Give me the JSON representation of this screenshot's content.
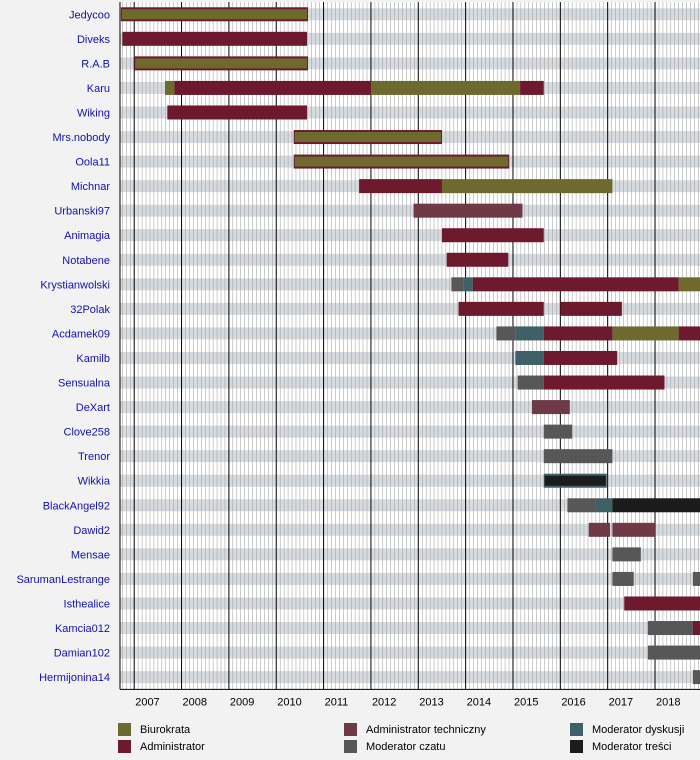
{
  "chart_data": {
    "type": "timeline",
    "title": "",
    "xlabel": "",
    "ylabel": "",
    "xlim": [
      2006.7,
      2018.95
    ],
    "x_ticks": [
      "2007",
      "2008",
      "2009",
      "2010",
      "2011",
      "2012",
      "2013",
      "2014",
      "2015",
      "2016",
      "2017",
      "2018"
    ],
    "legend": [
      {
        "key": "biurokrata",
        "label": "Biurokrata",
        "color": "#6e6a2e"
      },
      {
        "key": "administrator",
        "label": "Administrator",
        "color": "#6e1a2e"
      },
      {
        "key": "admin_tech",
        "label": "Administrator techniczny",
        "color": "#6e3a46"
      },
      {
        "key": "mod_czatu",
        "label": "Moderator czatu",
        "color": "#575757"
      },
      {
        "key": "mod_dyskusji",
        "label": "Moderator dyskusji",
        "color": "#3d6166"
      },
      {
        "key": "mod_tresci",
        "label": "Moderator treści",
        "color": "#1c1c1c"
      }
    ],
    "users": [
      {
        "name": "Jedycoo",
        "bars": [
          {
            "role": "administrator",
            "start": 2006.72,
            "end": 2010.67
          },
          {
            "role": "biurokrata",
            "start": 2006.74,
            "end": 2010.65,
            "thin": true
          }
        ]
      },
      {
        "name": "Diveks",
        "bars": [
          {
            "role": "administrator",
            "start": 2006.75,
            "end": 2010.65
          }
        ]
      },
      {
        "name": "R.A.B",
        "bars": [
          {
            "role": "administrator",
            "start": 2007.0,
            "end": 2010.67
          },
          {
            "role": "biurokrata",
            "start": 2007.02,
            "end": 2010.65,
            "thin": true
          }
        ]
      },
      {
        "name": "Karu",
        "bars": [
          {
            "role": "biurokrata",
            "start": 2007.65,
            "end": 2007.85
          },
          {
            "role": "administrator",
            "start": 2007.85,
            "end": 2012.0
          },
          {
            "role": "biurokrata",
            "start": 2012.0,
            "end": 2015.15
          },
          {
            "role": "administrator",
            "start": 2015.15,
            "end": 2015.65
          }
        ]
      },
      {
        "name": "Wiking",
        "bars": [
          {
            "role": "administrator",
            "start": 2007.7,
            "end": 2010.65
          }
        ]
      },
      {
        "name": "Mrs.nobody",
        "bars": [
          {
            "role": "administrator",
            "start": 2010.37,
            "end": 2013.5
          },
          {
            "role": "biurokrata",
            "start": 2010.39,
            "end": 2013.48,
            "thin": true
          }
        ]
      },
      {
        "name": "Oola11",
        "bars": [
          {
            "role": "administrator",
            "start": 2010.37,
            "end": 2014.92
          },
          {
            "role": "biurokrata",
            "start": 2010.39,
            "end": 2014.9,
            "thin": true
          }
        ]
      },
      {
        "name": "Michnar",
        "bars": [
          {
            "role": "administrator",
            "start": 2011.75,
            "end": 2013.5
          },
          {
            "role": "biurokrata",
            "start": 2013.5,
            "end": 2017.1
          }
        ]
      },
      {
        "name": "Urbanski97",
        "bars": [
          {
            "role": "admin_tech",
            "start": 2012.9,
            "end": 2015.2
          }
        ]
      },
      {
        "name": "Animagia",
        "bars": [
          {
            "role": "administrator",
            "start": 2013.5,
            "end": 2015.65
          }
        ]
      },
      {
        "name": "Notabene",
        "bars": [
          {
            "role": "administrator",
            "start": 2013.6,
            "end": 2014.9
          }
        ]
      },
      {
        "name": "Krystianwolski",
        "bars": [
          {
            "role": "mod_czatu",
            "start": 2013.7,
            "end": 2013.95
          },
          {
            "role": "mod_dyskusji",
            "start": 2013.95,
            "end": 2014.15
          },
          {
            "role": "administrator",
            "start": 2014.15,
            "end": 2018.5
          },
          {
            "role": "biurokrata",
            "start": 2018.5,
            "end": 2018.95
          }
        ]
      },
      {
        "name": "32Polak",
        "bars": [
          {
            "role": "administrator",
            "start": 2013.85,
            "end": 2015.65
          },
          {
            "role": "administrator",
            "start": 2016.0,
            "end": 2017.3
          }
        ]
      },
      {
        "name": "Acdamek09",
        "bars": [
          {
            "role": "mod_czatu",
            "start": 2014.65,
            "end": 2015.05
          },
          {
            "role": "mod_dyskusji",
            "start": 2015.05,
            "end": 2015.65
          },
          {
            "role": "administrator",
            "start": 2015.65,
            "end": 2017.1
          },
          {
            "role": "biurokrata",
            "start": 2017.1,
            "end": 2018.5
          },
          {
            "role": "administrator",
            "start": 2018.5,
            "end": 2018.95
          }
        ]
      },
      {
        "name": "Kamilb",
        "bars": [
          {
            "role": "mod_dyskusji",
            "start": 2015.05,
            "end": 2015.65
          },
          {
            "role": "administrator",
            "start": 2015.65,
            "end": 2017.2
          }
        ]
      },
      {
        "name": "Sensualna",
        "bars": [
          {
            "role": "mod_czatu",
            "start": 2015.1,
            "end": 2015.65
          },
          {
            "role": "administrator",
            "start": 2015.65,
            "end": 2018.2
          }
        ]
      },
      {
        "name": "DeXart",
        "bars": [
          {
            "role": "admin_tech",
            "start": 2015.4,
            "end": 2016.2
          }
        ]
      },
      {
        "name": "Clove258",
        "bars": [
          {
            "role": "mod_czatu",
            "start": 2015.65,
            "end": 2016.25
          }
        ]
      },
      {
        "name": "Trenor",
        "bars": [
          {
            "role": "mod_czatu",
            "start": 2015.65,
            "end": 2017.1
          }
        ]
      },
      {
        "name": "Wikkia",
        "bars": [
          {
            "role": "mod_dyskusji",
            "start": 2015.65,
            "end": 2016.98
          },
          {
            "role": "mod_tresci",
            "start": 2015.67,
            "end": 2016.96,
            "thin": true
          }
        ]
      },
      {
        "name": "BlackAngel92",
        "bars": [
          {
            "role": "mod_czatu",
            "start": 2016.15,
            "end": 2016.75
          },
          {
            "role": "mod_dyskusji",
            "start": 2016.75,
            "end": 2017.1
          },
          {
            "role": "mod_tresci",
            "start": 2017.1,
            "end": 2018.95
          }
        ]
      },
      {
        "name": "Dawid2",
        "bars": [
          {
            "role": "admin_tech",
            "start": 2016.6,
            "end": 2017.05
          },
          {
            "role": "admin_tech",
            "start": 2017.1,
            "end": 2018.0
          }
        ]
      },
      {
        "name": "Mensae",
        "bars": [
          {
            "role": "mod_czatu",
            "start": 2017.1,
            "end": 2017.7
          }
        ]
      },
      {
        "name": "SarumanLestrange",
        "bars": [
          {
            "role": "mod_czatu",
            "start": 2017.1,
            "end": 2017.55
          },
          {
            "role": "mod_czatu",
            "start": 2018.8,
            "end": 2018.95
          }
        ]
      },
      {
        "name": "Isthealice",
        "bars": [
          {
            "role": "administrator",
            "start": 2017.35,
            "end": 2018.95
          }
        ]
      },
      {
        "name": "Kamcia012",
        "bars": [
          {
            "role": "mod_czatu",
            "start": 2017.85,
            "end": 2018.8
          },
          {
            "role": "administrator",
            "start": 2018.8,
            "end": 2018.95
          }
        ]
      },
      {
        "name": "Damian102",
        "bars": [
          {
            "role": "mod_czatu",
            "start": 2017.85,
            "end": 2018.95
          }
        ]
      },
      {
        "name": "Hermijonina14",
        "bars": [
          {
            "role": "mod_czatu",
            "start": 2018.8,
            "end": 2018.95
          }
        ]
      }
    ]
  }
}
